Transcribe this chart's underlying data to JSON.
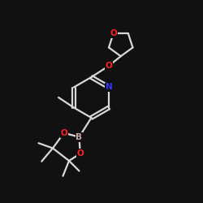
{
  "bg_color": "#111111",
  "bond_color": "#d8d8d8",
  "atom_colors": {
    "N": "#3333ff",
    "O": "#ff2020",
    "B": "#c8a8a8"
  },
  "bond_width": 1.6,
  "figsize": [
    2.5,
    2.5
  ],
  "dpi": 100,
  "font_size": 7.5
}
